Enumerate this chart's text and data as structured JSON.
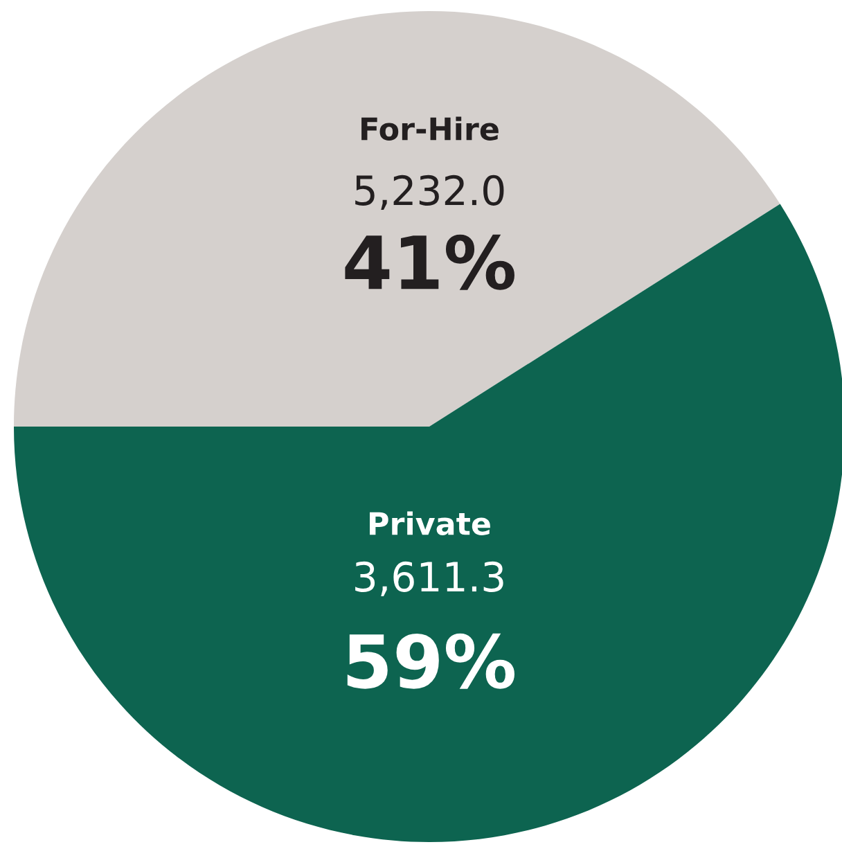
{
  "chart_data": {
    "type": "pie",
    "categories": [
      "For-Hire",
      "Private"
    ],
    "values": [
      41,
      59
    ],
    "colors": [
      "#d5d0cd",
      "#0d6450"
    ],
    "value_labels": [
      "41%",
      "59%"
    ],
    "annotations": [
      "5,232.0",
      "3,611.3"
    ],
    "legend": false
  }
}
